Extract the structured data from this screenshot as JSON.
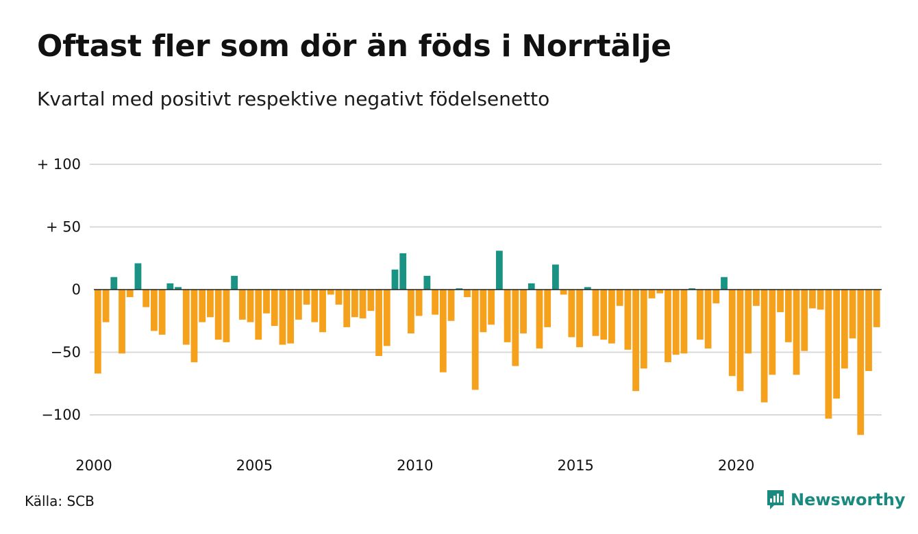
{
  "header": {
    "title": "Oftast fler som dör än föds i Norrtälje",
    "subtitle": "Kvartal med positivt respektive negativt födelsenetto"
  },
  "footer": {
    "source": "Källa: SCB",
    "brand": "Newsworthy",
    "brand_icon": "newsworthy-logo-icon"
  },
  "colors": {
    "positive": "#1a9384",
    "negative": "#f5a11c",
    "grid": "#d9d9d9",
    "brand": "#1a8a7e"
  },
  "chart_data": {
    "type": "bar",
    "title": "Oftast fler som dör än föds i Norrtälje",
    "subtitle": "Kvartal med positivt respektive negativt födelsenetto",
    "xlabel": "",
    "ylabel": "",
    "ylim": [
      -125,
      100
    ],
    "yticks": [
      100,
      50,
      0,
      -50,
      -100
    ],
    "ytick_labels": [
      "+ 100",
      "+  50",
      "0",
      "−50",
      "−100"
    ],
    "x_start": "2000 Q1",
    "frequency": "quarter",
    "xticks": [
      "2000",
      "2005",
      "2010",
      "2015",
      "2020"
    ],
    "grid": true,
    "legend": "none",
    "values": [
      -67,
      -26,
      10,
      -51,
      -6,
      21,
      -14,
      -33,
      -36,
      5,
      2,
      -44,
      -58,
      -26,
      -22,
      -40,
      -42,
      11,
      -24,
      -26,
      -40,
      -19,
      -29,
      -44,
      -43,
      -24,
      -12,
      -26,
      -34,
      -4,
      -12,
      -30,
      -22,
      -23,
      -17,
      -53,
      -45,
      16,
      29,
      -35,
      -21,
      11,
      -20,
      -66,
      -25,
      1,
      -6,
      -80,
      -34,
      -28,
      31,
      -42,
      -61,
      -35,
      5,
      -47,
      -30,
      20,
      -4,
      -38,
      -46,
      2,
      -37,
      -40,
      -43,
      -13,
      -48,
      -81,
      -63,
      -7,
      -3,
      -58,
      -52,
      -51,
      1,
      -40,
      -47,
      -11,
      10,
      -69,
      -81,
      -51,
      -13,
      -90,
      -68,
      -18,
      -42,
      -68,
      -49,
      -15,
      -16,
      -103,
      -87,
      -63,
      -39,
      -116,
      -65,
      -30
    ]
  }
}
